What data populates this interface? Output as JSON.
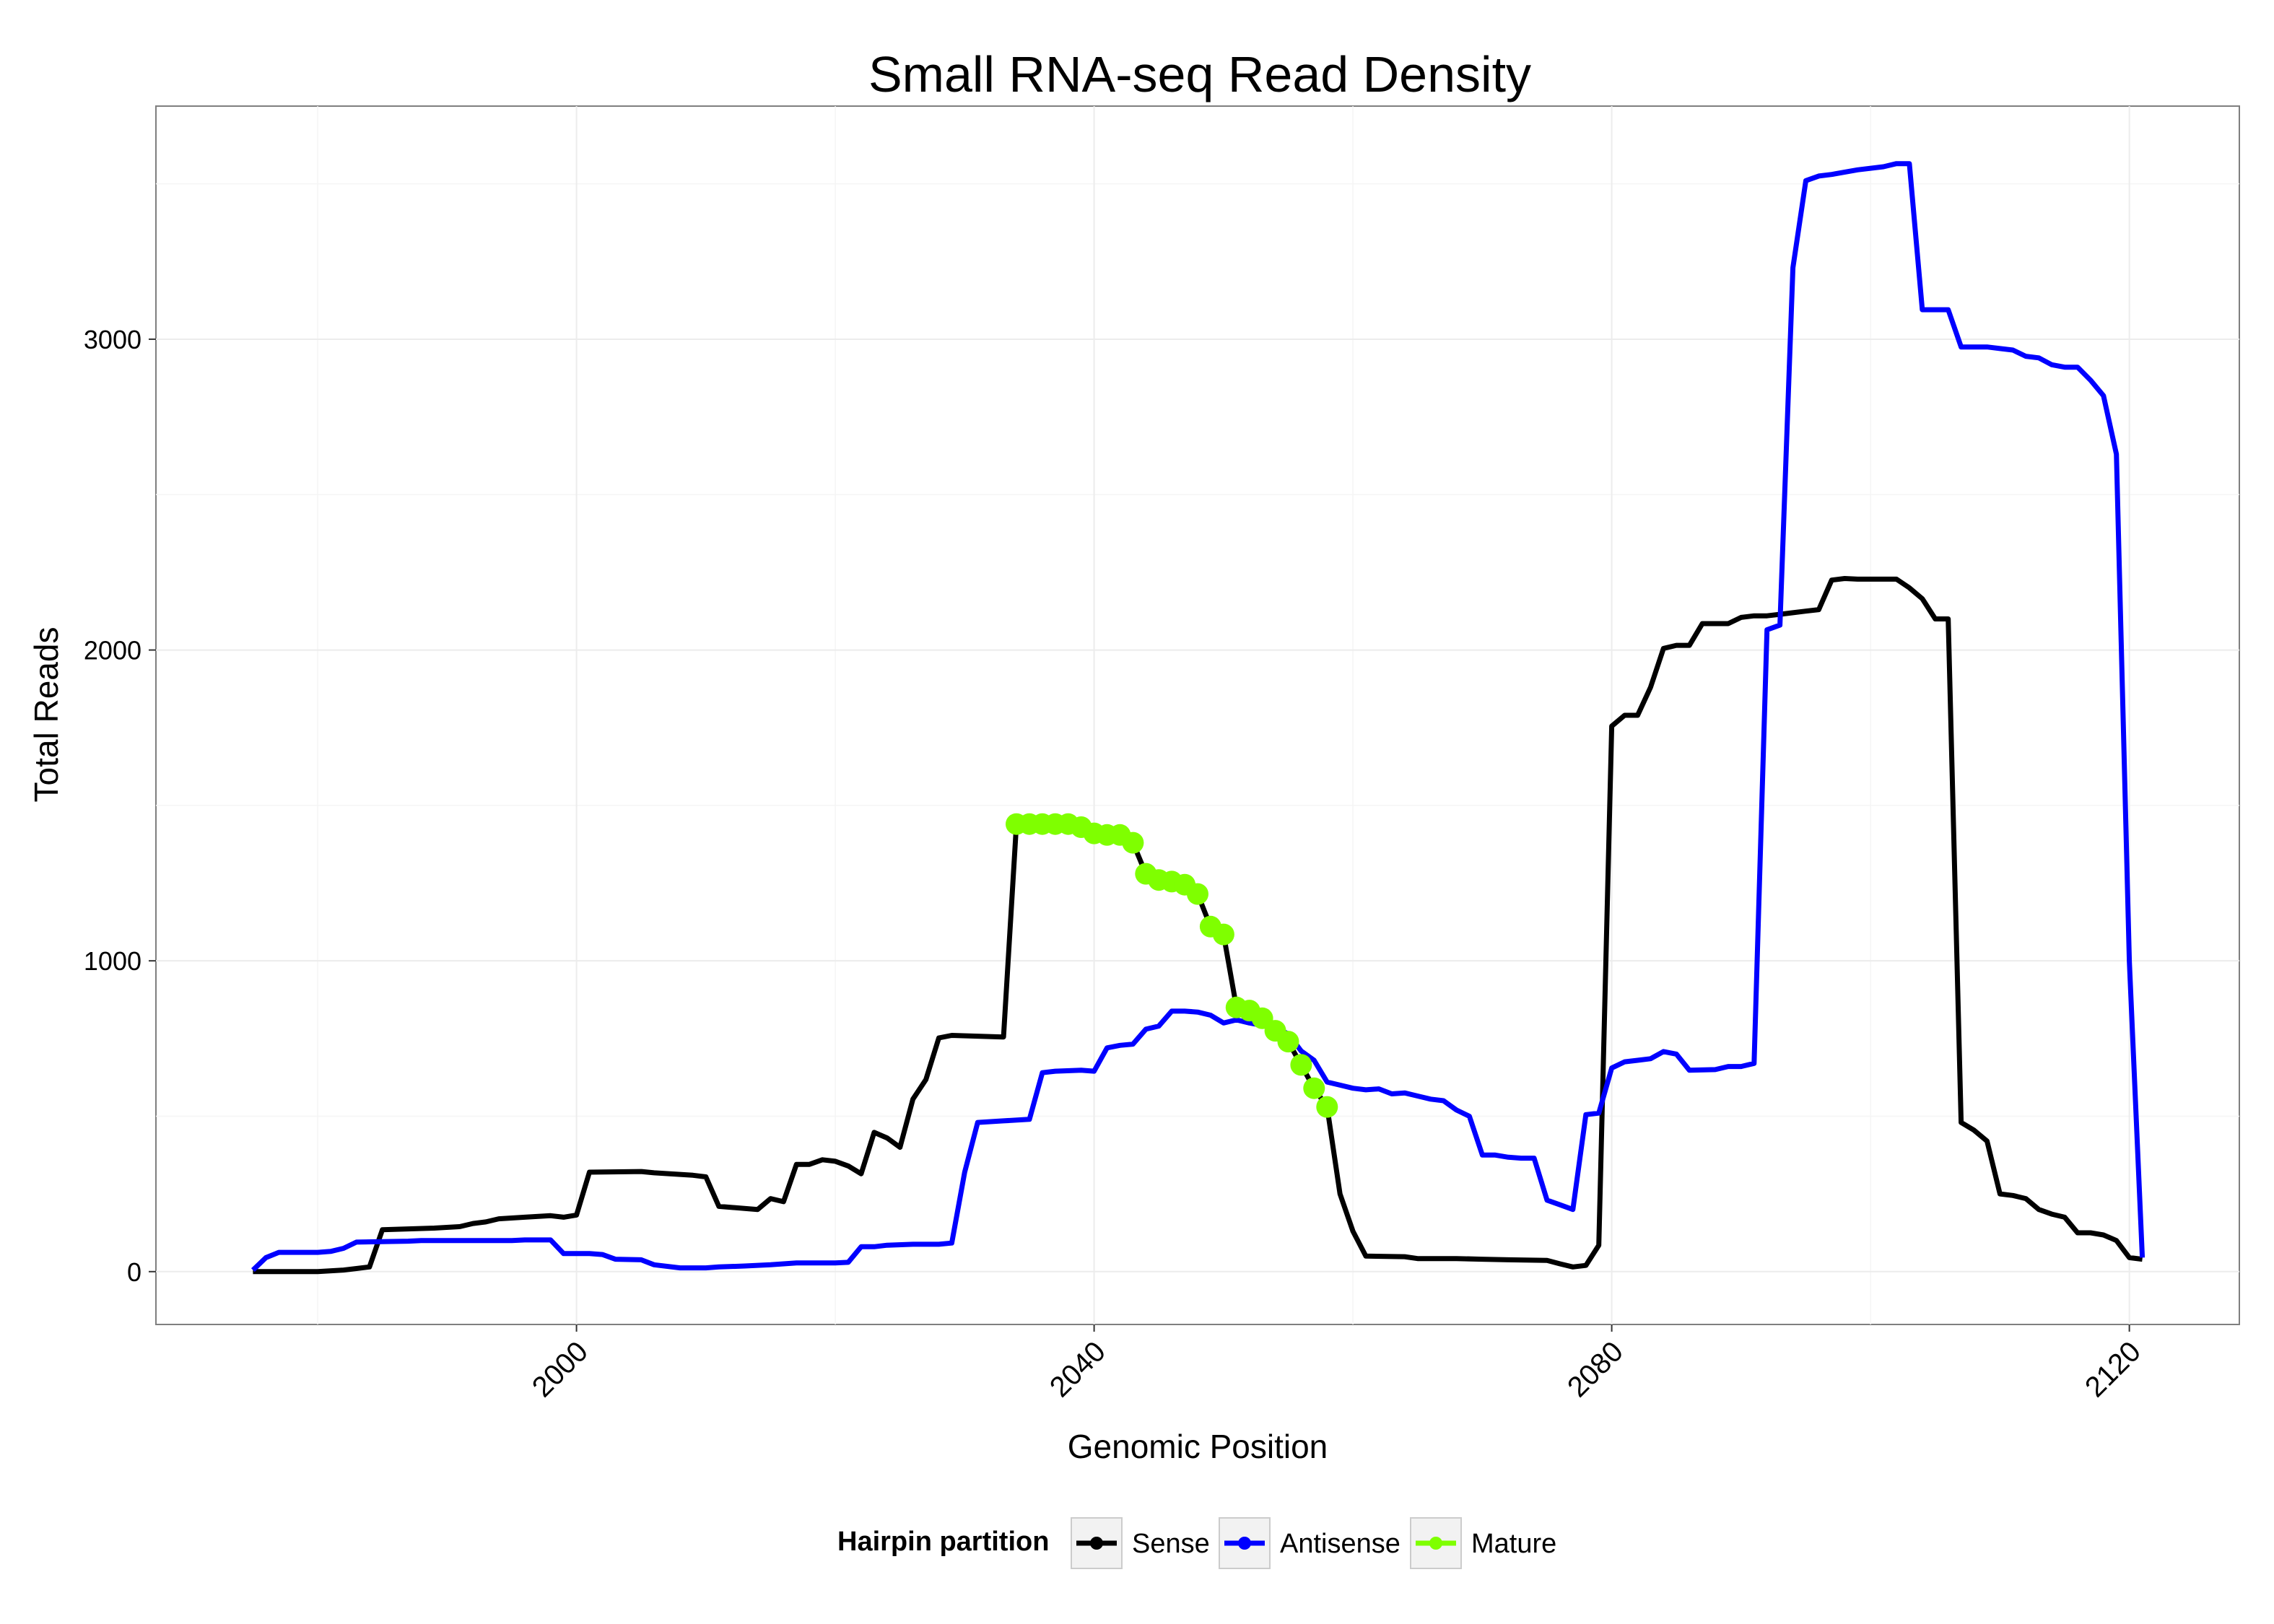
{
  "chart_data": {
    "type": "line",
    "title": "Small RNA-seq Read Density",
    "xlabel": "Genomic Position",
    "ylabel": "Total Reads",
    "xlim": [
      1967.5,
      2128.5
    ],
    "ylim": [
      -170,
      3750
    ],
    "xticks": [
      2000,
      2040,
      2080,
      2120
    ],
    "xtick_labels": [
      "2000",
      "2040",
      "2080",
      "2120"
    ],
    "yticks": [
      0,
      1000,
      2000,
      3000
    ],
    "ytick_labels": [
      "0",
      "1000",
      "2000",
      "3000"
    ],
    "grid": true,
    "legend": {
      "title": "Hairpin partition",
      "position": "bottom",
      "entries": [
        {
          "name": "Sense",
          "color": "#000000"
        },
        {
          "name": "Antisense",
          "color": "#0000ff"
        },
        {
          "name": "Mature",
          "color": "#7fff00"
        }
      ]
    },
    "series": [
      {
        "name": "Sense",
        "color": "#000000",
        "points": [
          [
            1975,
            0
          ],
          [
            1980,
            0
          ],
          [
            1982,
            5
          ],
          [
            1983,
            10
          ],
          [
            1984,
            15
          ],
          [
            1985,
            135
          ],
          [
            1989,
            140
          ],
          [
            1991,
            145
          ],
          [
            1992,
            155
          ],
          [
            1993,
            160
          ],
          [
            1994,
            170
          ],
          [
            1996,
            175
          ],
          [
            1998,
            180
          ],
          [
            1999,
            175
          ],
          [
            2000,
            182
          ],
          [
            2001,
            320
          ],
          [
            2005,
            322
          ],
          [
            2006,
            318
          ],
          [
            2009,
            310
          ],
          [
            2010,
            305
          ],
          [
            2011,
            210
          ],
          [
            2014,
            200
          ],
          [
            2015,
            235
          ],
          [
            2016,
            225
          ],
          [
            2017,
            345
          ],
          [
            2018,
            345
          ],
          [
            2019,
            360
          ],
          [
            2020,
            355
          ],
          [
            2021,
            340
          ],
          [
            2022,
            315
          ],
          [
            2023,
            448
          ],
          [
            2024,
            430
          ],
          [
            2025,
            400
          ],
          [
            2026,
            555
          ],
          [
            2027,
            618
          ],
          [
            2028,
            752
          ],
          [
            2029,
            760
          ],
          [
            2033,
            755
          ],
          [
            2034,
            1440
          ],
          [
            2035,
            1440
          ],
          [
            2036,
            1440
          ],
          [
            2037,
            1440
          ],
          [
            2038,
            1440
          ],
          [
            2039,
            1430
          ],
          [
            2040,
            1410
          ],
          [
            2041,
            1405
          ],
          [
            2042,
            1405
          ],
          [
            2043,
            1380
          ],
          [
            2044,
            1280
          ],
          [
            2045,
            1260
          ],
          [
            2046,
            1255
          ],
          [
            2047,
            1245
          ],
          [
            2048,
            1215
          ],
          [
            2049,
            1110
          ],
          [
            2050,
            1085
          ],
          [
            2051,
            850
          ],
          [
            2052,
            840
          ],
          [
            2053,
            815
          ],
          [
            2054,
            775
          ],
          [
            2055,
            740
          ],
          [
            2056,
            665
          ],
          [
            2057,
            590
          ],
          [
            2058,
            530
          ],
          [
            2059,
            250
          ],
          [
            2060,
            130
          ],
          [
            2061,
            50
          ],
          [
            2064,
            48
          ],
          [
            2065,
            42
          ],
          [
            2068,
            42
          ],
          [
            2070,
            40
          ],
          [
            2072,
            38
          ],
          [
            2075,
            36
          ],
          [
            2076,
            25
          ],
          [
            2077,
            15
          ],
          [
            2078,
            20
          ],
          [
            2079,
            85
          ],
          [
            2080,
            1755
          ],
          [
            2081,
            1790
          ],
          [
            2082,
            1790
          ],
          [
            2083,
            1880
          ],
          [
            2084,
            2005
          ],
          [
            2085,
            2015
          ],
          [
            2086,
            2015
          ],
          [
            2087,
            2085
          ],
          [
            2088,
            2085
          ],
          [
            2089,
            2085
          ],
          [
            2090,
            2105
          ],
          [
            2091,
            2110
          ],
          [
            2092,
            2110
          ],
          [
            2093,
            2115
          ],
          [
            2094,
            2120
          ],
          [
            2095,
            2125
          ],
          [
            2096,
            2130
          ],
          [
            2097,
            2225
          ],
          [
            2098,
            2230
          ],
          [
            2099,
            2228
          ],
          [
            2102,
            2228
          ],
          [
            2103,
            2200
          ],
          [
            2104,
            2165
          ],
          [
            2105,
            2100
          ],
          [
            2106,
            2100
          ],
          [
            2107,
            480
          ],
          [
            2108,
            455
          ],
          [
            2109,
            420
          ],
          [
            2110,
            250
          ],
          [
            2111,
            245
          ],
          [
            2112,
            235
          ],
          [
            2113,
            200
          ],
          [
            2114,
            185
          ],
          [
            2115,
            175
          ],
          [
            2116,
            125
          ],
          [
            2117,
            125
          ],
          [
            2118,
            118
          ],
          [
            2119,
            100
          ],
          [
            2120,
            45
          ],
          [
            2121,
            40
          ]
        ]
      },
      {
        "name": "Antisense",
        "color": "#0000ff",
        "points": [
          [
            1975,
            5
          ],
          [
            1976,
            45
          ],
          [
            1977,
            62
          ],
          [
            1980,
            62
          ],
          [
            1981,
            65
          ],
          [
            1982,
            75
          ],
          [
            1983,
            95
          ],
          [
            1987,
            98
          ],
          [
            1988,
            100
          ],
          [
            1995,
            100
          ],
          [
            1996,
            102
          ],
          [
            1998,
            102
          ],
          [
            1999,
            58
          ],
          [
            2001,
            58
          ],
          [
            2002,
            55
          ],
          [
            2003,
            40
          ],
          [
            2005,
            38
          ],
          [
            2006,
            22
          ],
          [
            2008,
            12
          ],
          [
            2010,
            12
          ],
          [
            2011,
            15
          ],
          [
            2013,
            18
          ],
          [
            2015,
            22
          ],
          [
            2017,
            28
          ],
          [
            2020,
            28
          ],
          [
            2021,
            30
          ],
          [
            2022,
            80
          ],
          [
            2023,
            80
          ],
          [
            2024,
            85
          ],
          [
            2026,
            88
          ],
          [
            2028,
            88
          ],
          [
            2029,
            92
          ],
          [
            2030,
            320
          ],
          [
            2031,
            480
          ],
          [
            2033,
            485
          ],
          [
            2035,
            490
          ],
          [
            2036,
            640
          ],
          [
            2037,
            645
          ],
          [
            2039,
            648
          ],
          [
            2040,
            645
          ],
          [
            2041,
            720
          ],
          [
            2042,
            728
          ],
          [
            2043,
            732
          ],
          [
            2044,
            780
          ],
          [
            2045,
            790
          ],
          [
            2046,
            838
          ],
          [
            2047,
            838
          ],
          [
            2048,
            835
          ],
          [
            2049,
            825
          ],
          [
            2050,
            800
          ],
          [
            2051,
            810
          ],
          [
            2052,
            800
          ],
          [
            2054,
            785
          ],
          [
            2055,
            765
          ],
          [
            2056,
            710
          ],
          [
            2057,
            680
          ],
          [
            2058,
            610
          ],
          [
            2059,
            600
          ],
          [
            2060,
            590
          ],
          [
            2061,
            585
          ],
          [
            2062,
            588
          ],
          [
            2063,
            572
          ],
          [
            2064,
            575
          ],
          [
            2065,
            565
          ],
          [
            2066,
            555
          ],
          [
            2067,
            550
          ],
          [
            2068,
            520
          ],
          [
            2069,
            500
          ],
          [
            2070,
            375
          ],
          [
            2071,
            375
          ],
          [
            2072,
            368
          ],
          [
            2073,
            365
          ],
          [
            2074,
            365
          ],
          [
            2075,
            230
          ],
          [
            2076,
            215
          ],
          [
            2077,
            200
          ],
          [
            2078,
            505
          ],
          [
            2079,
            510
          ],
          [
            2080,
            655
          ],
          [
            2081,
            675
          ],
          [
            2082,
            680
          ],
          [
            2083,
            685
          ],
          [
            2084,
            708
          ],
          [
            2085,
            700
          ],
          [
            2086,
            648
          ],
          [
            2088,
            650
          ],
          [
            2089,
            660
          ],
          [
            2090,
            660
          ],
          [
            2091,
            670
          ],
          [
            2092,
            2065
          ],
          [
            2093,
            2080
          ],
          [
            2094,
            3230
          ],
          [
            2095,
            3510
          ],
          [
            2096,
            3525
          ],
          [
            2097,
            3530
          ],
          [
            2099,
            3545
          ],
          [
            2101,
            3555
          ],
          [
            2102,
            3565
          ],
          [
            2103,
            3565
          ],
          [
            2104,
            3095
          ],
          [
            2106,
            3095
          ],
          [
            2107,
            2975
          ],
          [
            2109,
            2975
          ],
          [
            2110,
            2970
          ],
          [
            2111,
            2965
          ],
          [
            2112,
            2945
          ],
          [
            2113,
            2940
          ],
          [
            2114,
            2918
          ],
          [
            2115,
            2910
          ],
          [
            2116,
            2910
          ],
          [
            2117,
            2868
          ],
          [
            2118,
            2818
          ],
          [
            2119,
            2630
          ],
          [
            2120,
            1000
          ],
          [
            2121,
            45
          ]
        ]
      },
      {
        "name": "Mature",
        "color": "#7fff00",
        "points": [
          [
            2034,
            1440
          ],
          [
            2035,
            1440
          ],
          [
            2036,
            1440
          ],
          [
            2037,
            1440
          ],
          [
            2038,
            1440
          ],
          [
            2039,
            1430
          ],
          [
            2040,
            1410
          ],
          [
            2041,
            1405
          ],
          [
            2042,
            1405
          ],
          [
            2043,
            1380
          ],
          [
            2044,
            1280
          ],
          [
            2045,
            1260
          ],
          [
            2046,
            1255
          ],
          [
            2047,
            1245
          ],
          [
            2048,
            1215
          ],
          [
            2049,
            1110
          ],
          [
            2050,
            1085
          ],
          [
            2051,
            850
          ],
          [
            2052,
            840
          ],
          [
            2053,
            815
          ],
          [
            2054,
            775
          ],
          [
            2055,
            740
          ],
          [
            2056,
            665
          ],
          [
            2057,
            590
          ],
          [
            2058,
            530
          ]
        ]
      }
    ]
  }
}
